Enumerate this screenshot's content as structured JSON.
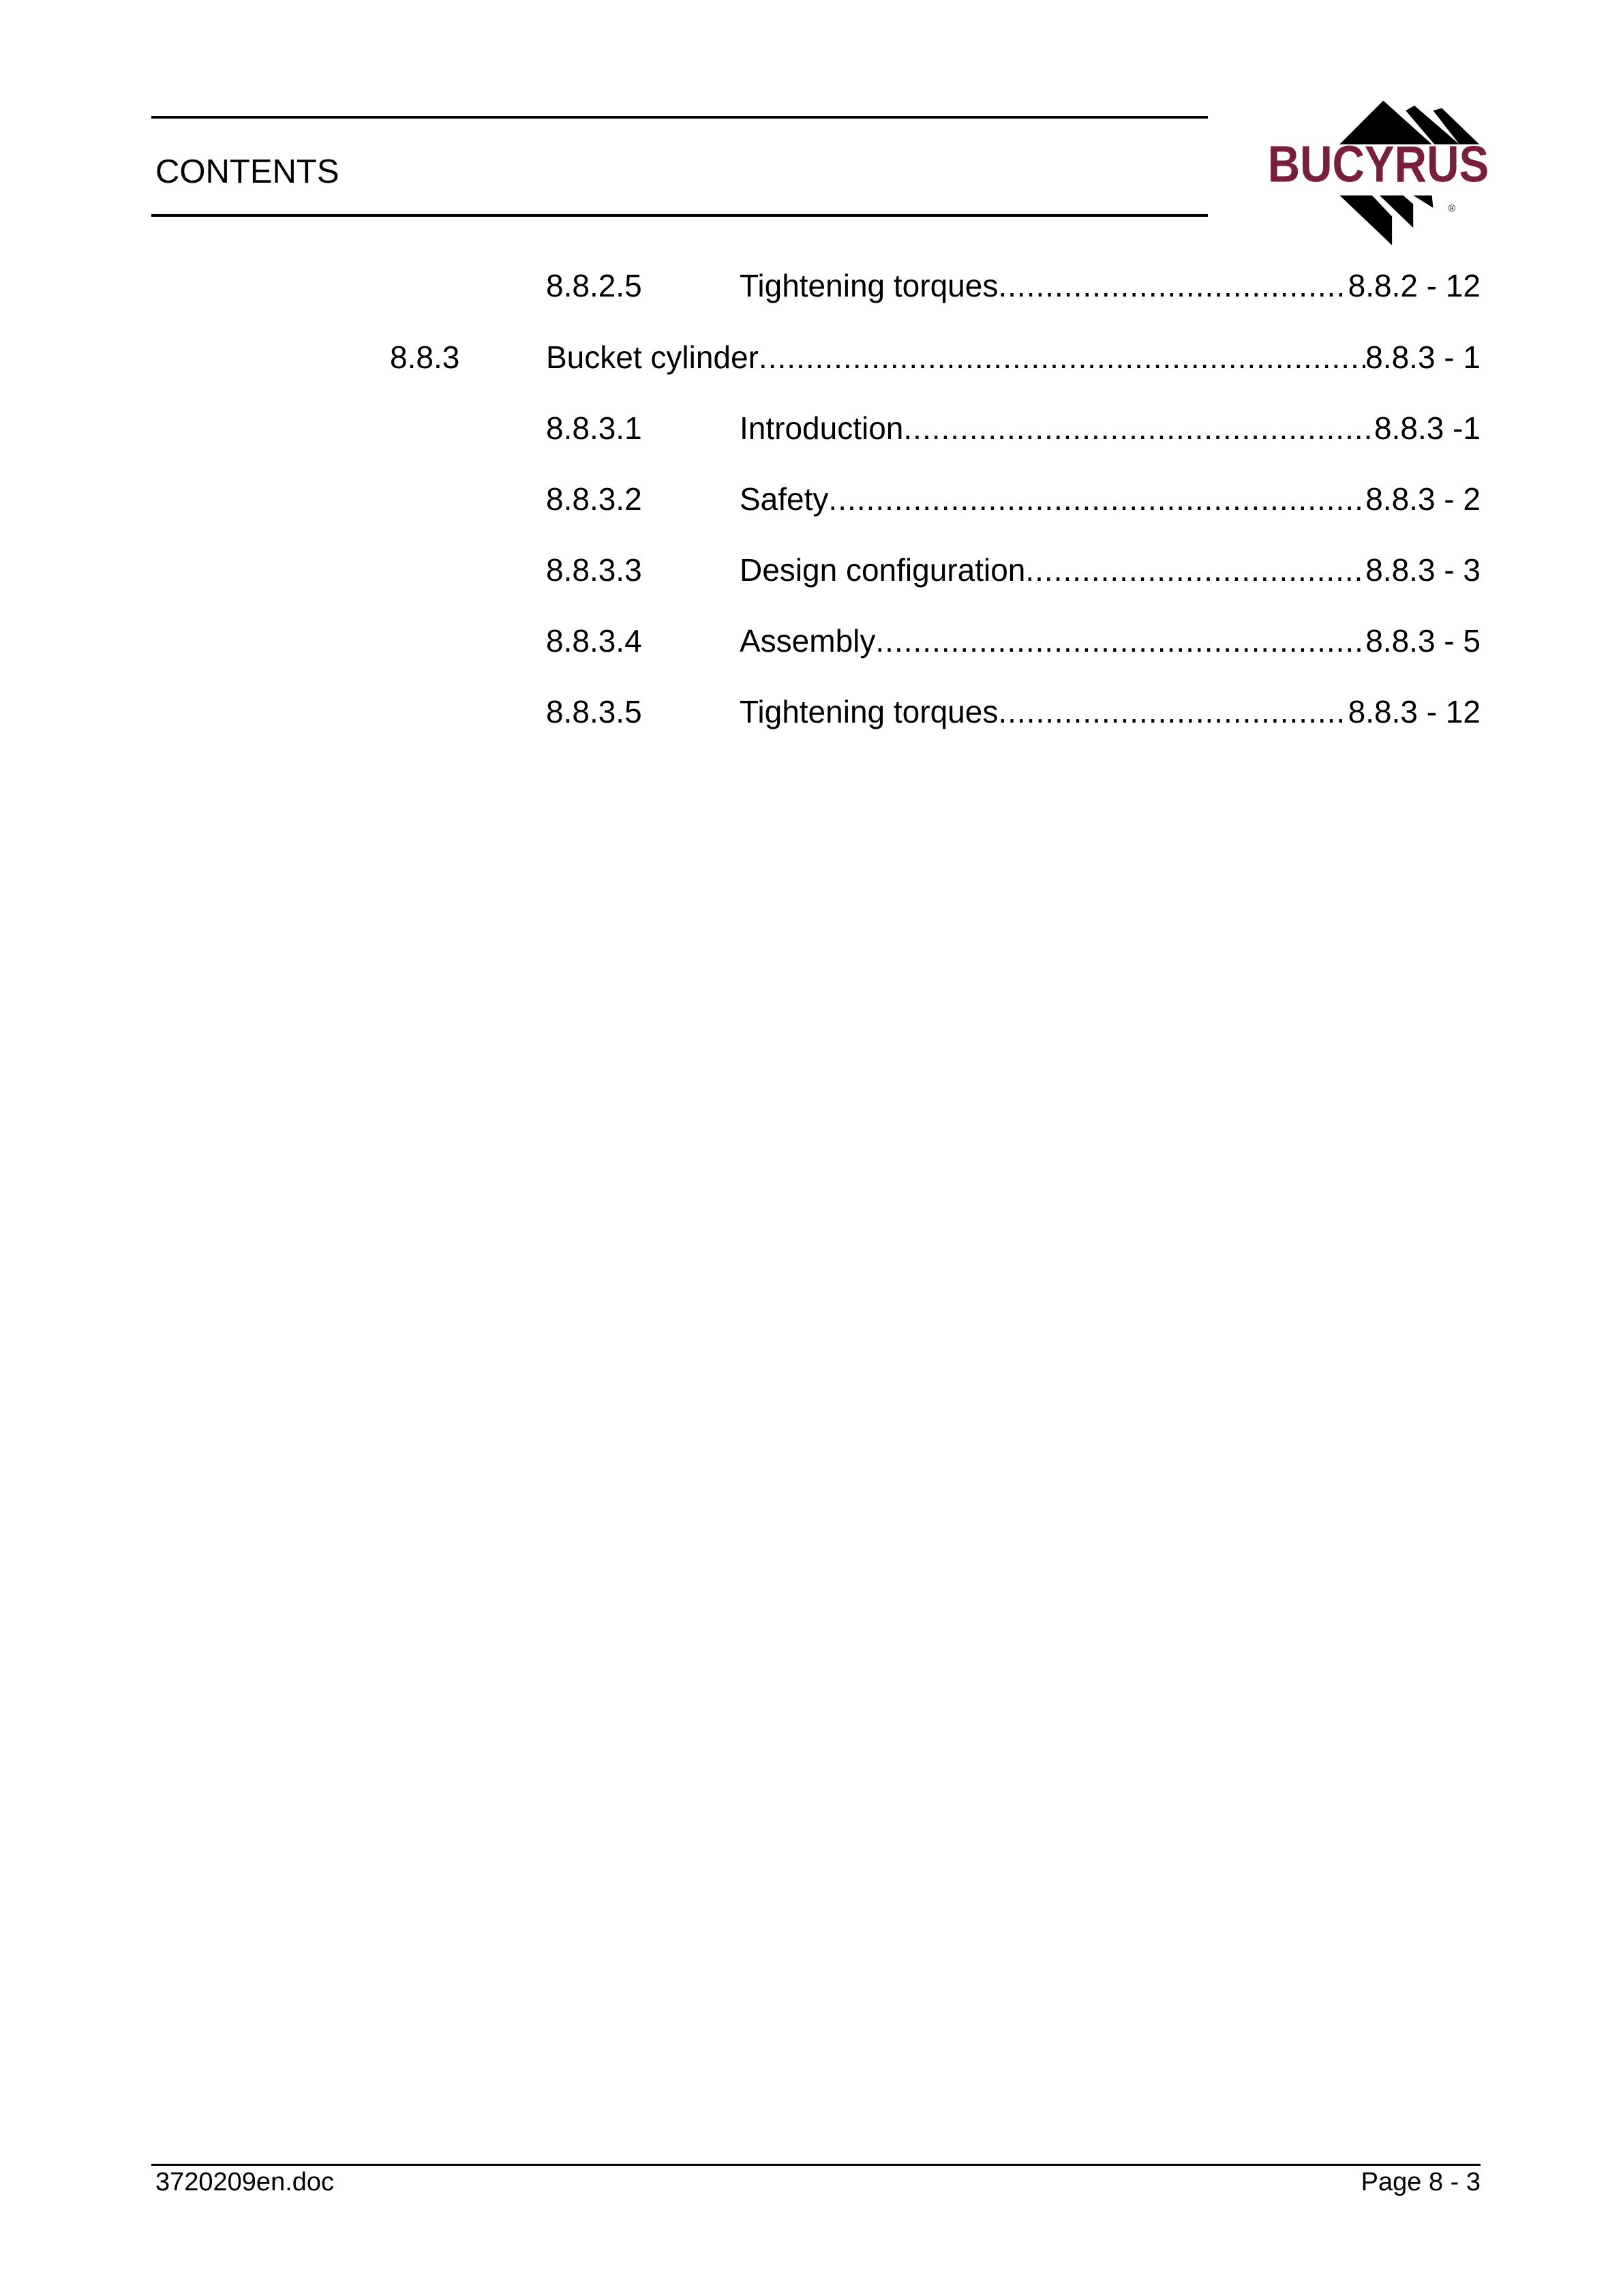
{
  "header": {
    "title": "CONTENTS",
    "logo": {
      "text": "BUCYRUS",
      "registered_mark": "®",
      "brand_color": "#7a1e3e"
    }
  },
  "toc": [
    {
      "level": 3,
      "number": "8.8.2.5",
      "title": "Tightening torques",
      "page": "8.8.2 - 12"
    },
    {
      "level": 2,
      "number": "8.8.3",
      "title": "Bucket cylinder",
      "page": "8.8.3 - 1"
    },
    {
      "level": 3,
      "number": "8.8.3.1",
      "title": "Introduction",
      "page": "8.8.3 -1"
    },
    {
      "level": 3,
      "number": "8.8.3.2",
      "title": "Safety",
      "page": "8.8.3 - 2"
    },
    {
      "level": 3,
      "number": "8.8.3.3",
      "title": "Design configuration",
      "page": "8.8.3 - 3"
    },
    {
      "level": 3,
      "number": "8.8.3.4",
      "title": "Assembly",
      "page": "8.8.3 - 5"
    },
    {
      "level": 3,
      "number": "8.8.3.5",
      "title": "Tightening torques",
      "page": "8.8.3 - 12"
    }
  ],
  "footer": {
    "document": "3720209en.doc",
    "page": "Page 8 - 3"
  }
}
